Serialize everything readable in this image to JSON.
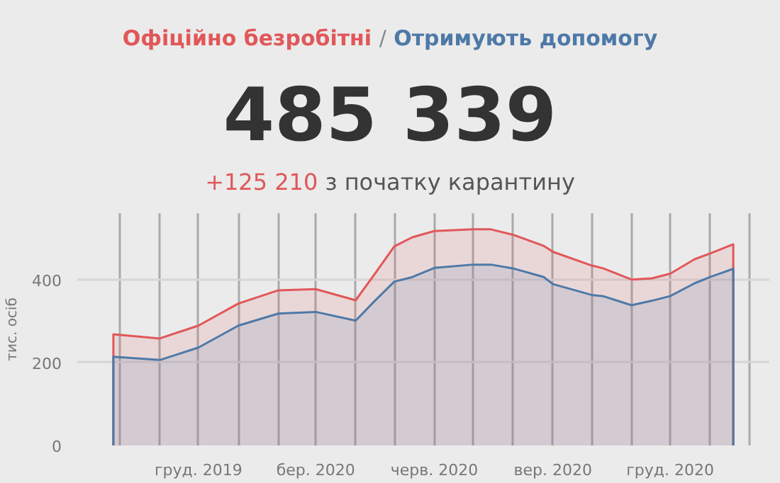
{
  "chart_data": {
    "type": "area",
    "annotations": [
      "/",
      "485 339",
      "+125 210",
      "з початку карантину"
    ],
    "ylabel": "тис. осіб",
    "x": [
      "2019-09-26",
      "2019-11-01",
      "2019-12-01",
      "2020-01-01",
      "2020-02-01",
      "2020-03-01",
      "2020-04-01",
      "2020-04-15",
      "2020-05-01",
      "2020-05-15",
      "2020-06-01",
      "2020-07-01",
      "2020-07-15",
      "2020-08-01",
      "2020-08-25",
      "2020-09-01",
      "2020-10-01",
      "2020-10-10",
      "2020-11-01",
      "2020-11-17",
      "2020-12-01",
      "2020-12-20",
      "2021-01-01",
      "2021-01-19"
    ],
    "series": [
      {
        "name": "Офіційно безробітні",
        "color": "#e15759",
        "values": [
          268,
          258,
          289,
          342,
          374,
          377,
          350,
          410,
          480,
          502,
          517,
          521,
          521,
          508,
          481,
          467,
          434,
          427,
          400,
          403,
          414,
          449,
          463,
          485
        ]
      },
      {
        "name": "Отримують допомогу",
        "color": "#4e79a7",
        "values": [
          214,
          206,
          236,
          289,
          318,
          322,
          301,
          346,
          395,
          406,
          428,
          436,
          436,
          427,
          406,
          389,
          363,
          360,
          338,
          349,
          360,
          391,
          406,
          426
        ]
      }
    ],
    "xlim": [
      "2019-08-29",
      "2021-02-16"
    ],
    "xticks": [
      {
        "value": "2019-10-01",
        "label": null
      },
      {
        "value": "2019-11-01",
        "label": null
      },
      {
        "value": "2019-12-01",
        "label": "груд. 2019"
      },
      {
        "value": "2020-01-01",
        "label": null
      },
      {
        "value": "2020-02-01",
        "label": null
      },
      {
        "value": "2020-03-01",
        "label": "бер. 2020"
      },
      {
        "value": "2020-04-01",
        "label": null
      },
      {
        "value": "2020-05-01",
        "label": null
      },
      {
        "value": "2020-06-01",
        "label": "черв. 2020"
      },
      {
        "value": "2020-07-01",
        "label": null
      },
      {
        "value": "2020-08-01",
        "label": null
      },
      {
        "value": "2020-09-01",
        "label": "вер. 2020"
      },
      {
        "value": "2020-10-01",
        "label": null
      },
      {
        "value": "2020-11-01",
        "label": null
      },
      {
        "value": "2020-12-01",
        "label": "груд. 2020"
      },
      {
        "value": "2021-01-01",
        "label": null
      },
      {
        "value": "2021-02-01",
        "label": null
      }
    ],
    "ylim": [
      0,
      560
    ],
    "yticks": [
      0,
      200,
      400
    ],
    "grid": true,
    "legend": "top"
  }
}
